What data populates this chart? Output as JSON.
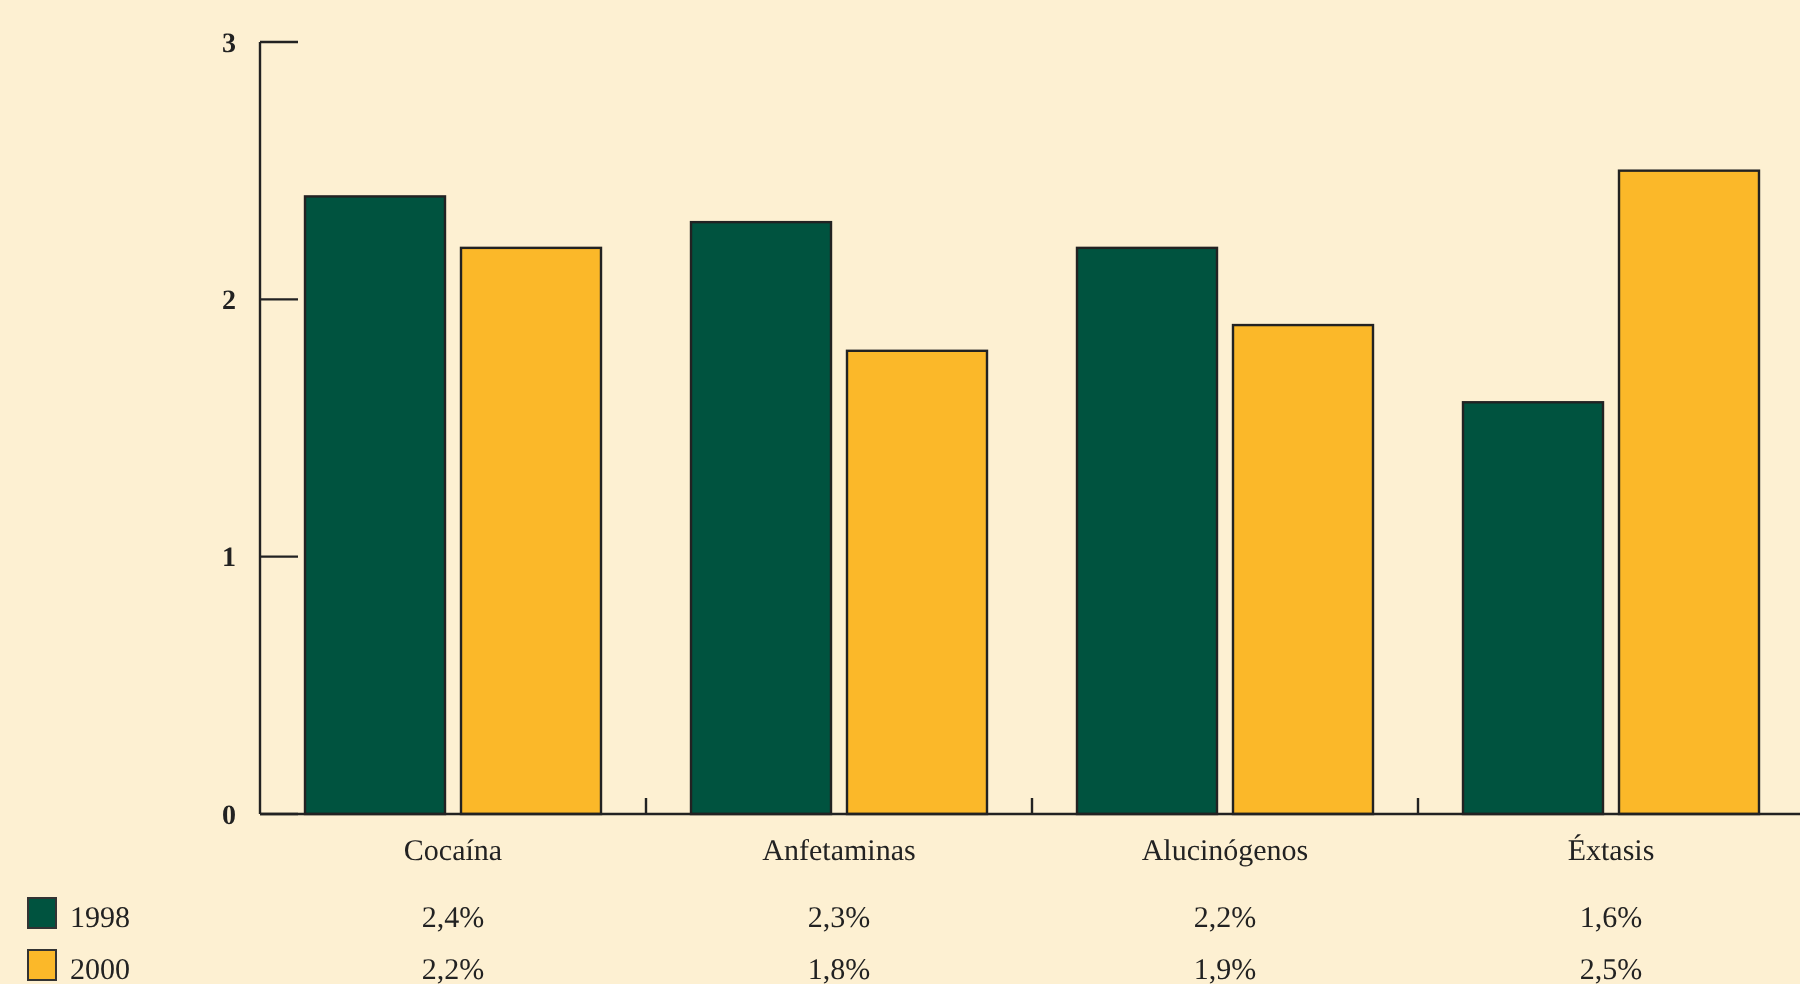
{
  "chart_data": {
    "type": "bar",
    "categories": [
      "Cocaína",
      "Anfetaminas",
      "Alucinógenos",
      "Éxtasis"
    ],
    "series": [
      {
        "name": "1998",
        "color": "#00533f",
        "values": [
          2.4,
          2.3,
          2.2,
          1.6
        ],
        "value_labels": [
          "2,4%",
          "2,3%",
          "2,2%",
          "1,6%"
        ]
      },
      {
        "name": "2000",
        "color": "#fbb829",
        "values": [
          2.2,
          1.8,
          1.9,
          2.5
        ],
        "value_labels": [
          "2,2%",
          "1,8%",
          "1,9%",
          "2,5%"
        ]
      }
    ],
    "ylim": [
      0,
      3
    ],
    "yticks": [
      0,
      1,
      2,
      3
    ],
    "grid": false,
    "legend": "bottom left"
  }
}
